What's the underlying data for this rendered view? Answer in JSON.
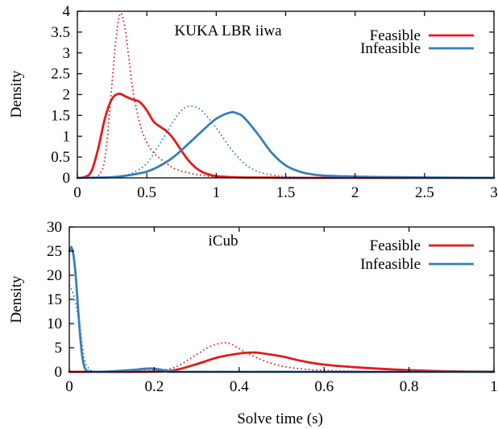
{
  "chart_data": [
    {
      "type": "line",
      "title": "KUKA LBR iiwa",
      "xlabel": "",
      "ylabel": "Density",
      "xlim": [
        0,
        3
      ],
      "ylim": [
        0,
        4
      ],
      "xticks": [
        "0",
        "0.5",
        "1",
        "1.5",
        "2",
        "2.5",
        "3"
      ],
      "yticks": [
        "0",
        "0.5",
        "1",
        "1.5",
        "2",
        "2.5",
        "3",
        "3.5",
        "4"
      ],
      "legend_position": "top-right",
      "colors": {
        "Feasible": "#e41a1c",
        "Infeasible": "#377eb8"
      },
      "series": [
        {
          "name": "Feasible",
          "style": "solid",
          "color": "#e41a1c",
          "x": [
            0,
            0.05,
            0.1,
            0.15,
            0.2,
            0.25,
            0.3,
            0.35,
            0.4,
            0.45,
            0.5,
            0.55,
            0.6,
            0.65,
            0.7,
            0.75,
            0.8,
            0.85,
            0.9,
            0.95,
            1.0,
            1.1,
            1.2,
            1.4,
            1.7,
            3.0
          ],
          "y": [
            0,
            0.02,
            0.15,
            0.7,
            1.45,
            1.9,
            2.02,
            1.95,
            1.88,
            1.82,
            1.62,
            1.35,
            1.22,
            1.1,
            0.9,
            0.65,
            0.42,
            0.25,
            0.14,
            0.08,
            0.04,
            0.02,
            0.01,
            0.005,
            0,
            0
          ]
        },
        {
          "name": "",
          "style": "dotted",
          "color": "#e41a1c",
          "x": [
            0.1,
            0.15,
            0.2,
            0.25,
            0.28,
            0.31,
            0.34,
            0.37,
            0.4,
            0.45,
            0.5,
            0.55,
            0.6,
            0.65,
            0.7,
            0.8,
            0.9,
            1.0,
            1.1
          ],
          "y": [
            0,
            0.05,
            0.5,
            2.3,
            3.4,
            3.95,
            3.65,
            2.9,
            2.1,
            1.3,
            0.85,
            0.6,
            0.45,
            0.33,
            0.22,
            0.12,
            0.06,
            0.02,
            0
          ]
        },
        {
          "name": "Infeasible",
          "style": "solid",
          "color": "#377eb8",
          "x": [
            0,
            0.2,
            0.3,
            0.4,
            0.5,
            0.6,
            0.7,
            0.8,
            0.9,
            1.0,
            1.1,
            1.15,
            1.2,
            1.3,
            1.4,
            1.5,
            1.6,
            1.7,
            1.8,
            2.0,
            2.2,
            2.5,
            3.0
          ],
          "y": [
            0,
            0.01,
            0.03,
            0.08,
            0.15,
            0.3,
            0.52,
            0.82,
            1.13,
            1.42,
            1.57,
            1.55,
            1.45,
            1.05,
            0.6,
            0.3,
            0.15,
            0.08,
            0.05,
            0.03,
            0.02,
            0.01,
            0
          ]
        },
        {
          "name": "",
          "style": "dotted",
          "color": "#377eb8",
          "x": [
            0.2,
            0.3,
            0.4,
            0.5,
            0.6,
            0.7,
            0.75,
            0.8,
            0.85,
            0.9,
            1.0,
            1.1,
            1.2,
            1.3,
            1.4,
            1.5,
            1.6,
            1.8,
            2.0
          ],
          "y": [
            0,
            0.03,
            0.12,
            0.35,
            0.85,
            1.4,
            1.62,
            1.72,
            1.7,
            1.6,
            1.2,
            0.72,
            0.35,
            0.15,
            0.07,
            0.03,
            0.015,
            0.005,
            0
          ]
        }
      ]
    },
    {
      "type": "line",
      "title": "iCub",
      "xlabel": "Solve time (s)",
      "ylabel": "Density",
      "xlim": [
        0,
        1
      ],
      "ylim": [
        0,
        30
      ],
      "xticks": [
        "0",
        "0.2",
        "0.4",
        "0.6",
        "0.8",
        "1"
      ],
      "yticks": [
        "0",
        "5",
        "10",
        "15",
        "20",
        "25",
        "30"
      ],
      "legend_position": "top-right",
      "colors": {
        "Feasible": "#e41a1c",
        "Infeasible": "#377eb8"
      },
      "series": [
        {
          "name": "Feasible",
          "style": "solid",
          "color": "#e41a1c",
          "x": [
            0,
            0.2,
            0.25,
            0.3,
            0.35,
            0.4,
            0.43,
            0.45,
            0.5,
            0.55,
            0.6,
            0.7,
            0.8,
            0.9,
            1.0
          ],
          "y": [
            0,
            0.05,
            0.4,
            1.6,
            3.0,
            3.8,
            4.0,
            3.9,
            3.2,
            2.2,
            1.5,
            0.8,
            0.35,
            0.1,
            0.03
          ]
        },
        {
          "name": "",
          "style": "dotted",
          "color": "#e41a1c",
          "x": [
            0.2,
            0.25,
            0.3,
            0.33,
            0.36,
            0.38,
            0.4,
            0.45,
            0.5,
            0.55,
            0.6,
            0.7,
            0.8
          ],
          "y": [
            0,
            1.0,
            3.6,
            5.2,
            6.0,
            5.8,
            4.8,
            2.6,
            1.2,
            0.6,
            0.3,
            0.08,
            0
          ]
        },
        {
          "name": "Infeasible",
          "style": "solid",
          "color": "#377eb8",
          "x": [
            0,
            0.005,
            0.01,
            0.015,
            0.02,
            0.025,
            0.03,
            0.035,
            0.04,
            0.05,
            0.06,
            0.1,
            0.15,
            0.19,
            0.22,
            0.25,
            0.3,
            1.0
          ],
          "y": [
            25,
            25.8,
            24,
            20,
            14,
            8,
            3.5,
            1.2,
            0.3,
            0.05,
            0,
            0.1,
            0.4,
            0.7,
            0.4,
            0.05,
            0,
            0
          ]
        },
        {
          "name": "",
          "style": "dotted",
          "color": "#377eb8",
          "x": [
            0,
            0.01,
            0.02,
            0.03,
            0.035,
            0.04,
            0.05,
            0.06,
            0.1,
            0.15,
            0.2,
            0.25
          ],
          "y": [
            18,
            16,
            12,
            6,
            3,
            1.4,
            0.4,
            0.1,
            0.05,
            0.2,
            0.3,
            0
          ]
        }
      ]
    }
  ]
}
